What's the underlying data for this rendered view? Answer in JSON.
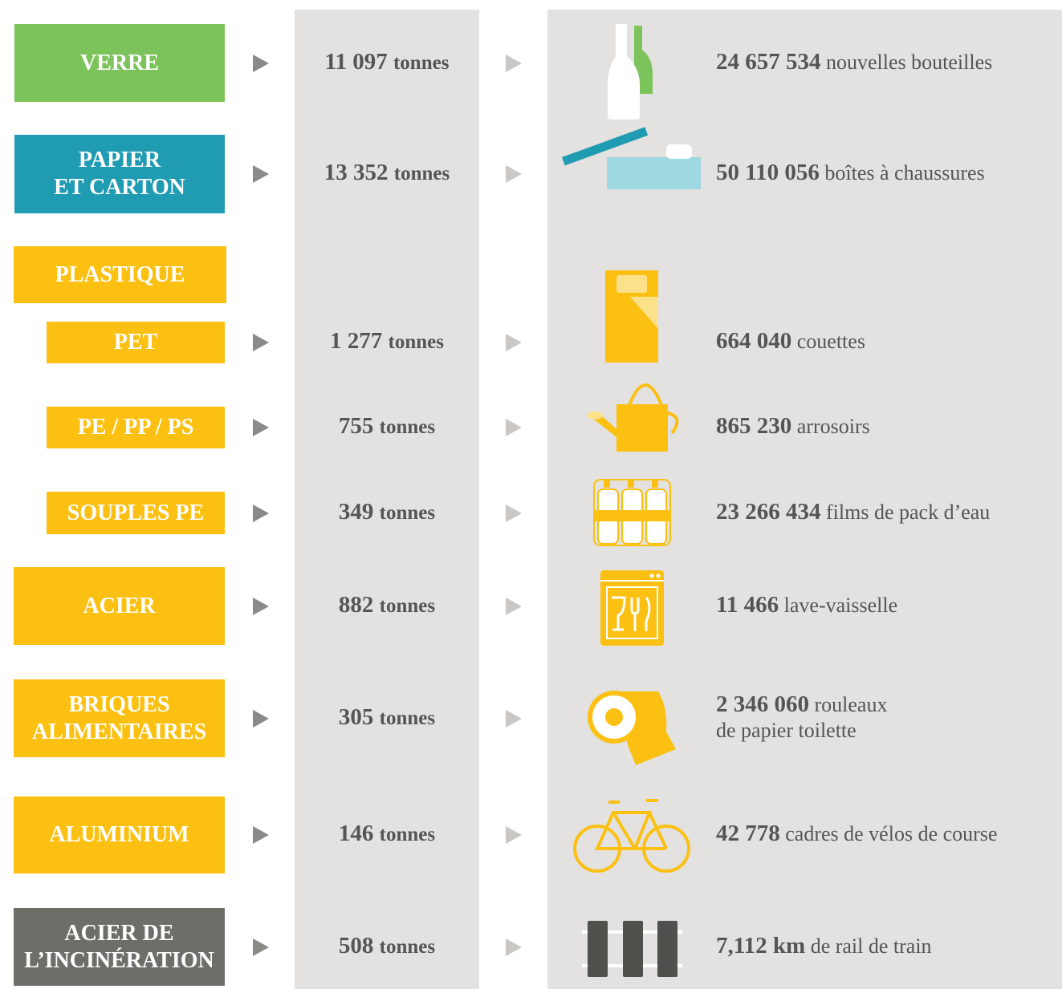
{
  "rows": [
    {
      "label": "VERRE",
      "color": "#7dc35b",
      "amount": "11 097",
      "unit": "tonnes",
      "equiv": "24 657 534",
      "equiv_label": "nouvelles bouteilles"
    },
    {
      "label": "PAPIER\nET CARTON",
      "color": "#1f9bb2",
      "amount": "13 352",
      "unit": "tonnes",
      "equiv": "50 110 056",
      "equiv_label": "boîtes à chaussures"
    },
    {
      "label": "PLASTIQUE",
      "color": "#fbc012"
    },
    {
      "label": "PET",
      "color": "#fbc012",
      "amount": "1 277",
      "unit": "tonnes",
      "equiv": "664 040",
      "equiv_label": "couettes"
    },
    {
      "label": "PE / PP / PS",
      "color": "#fbc012",
      "amount": "755",
      "unit": "tonnes",
      "equiv": "865 230",
      "equiv_label": "arrosoirs"
    },
    {
      "label": "SOUPLES PE",
      "color": "#fbc012",
      "amount": "349",
      "unit": "tonnes",
      "equiv": "23 266 434",
      "equiv_label": "films de pack d’eau"
    },
    {
      "label": "ACIER",
      "color": "#fbc012",
      "amount": "882",
      "unit": "tonnes",
      "equiv": "11 466",
      "equiv_label": "lave-vaisselle"
    },
    {
      "label": "BRIQUES\nALIMENTAIRES",
      "color": "#fbc012",
      "amount": "305",
      "unit": "tonnes",
      "equiv": "2 346 060",
      "equiv_label": "rouleaux\nde papier toilette"
    },
    {
      "label": "ALUMINIUM",
      "color": "#fbc012",
      "amount": "146",
      "unit": "tonnes",
      "equiv": "42 778",
      "equiv_label": "cadres de vélos de course"
    },
    {
      "label": "ACIER DE\nL’INCINÉRATION",
      "color": "#6e6e69",
      "amount": "508",
      "unit": "tonnes",
      "equiv": "7,112 km",
      "equiv_label": "de rail de train"
    }
  ]
}
